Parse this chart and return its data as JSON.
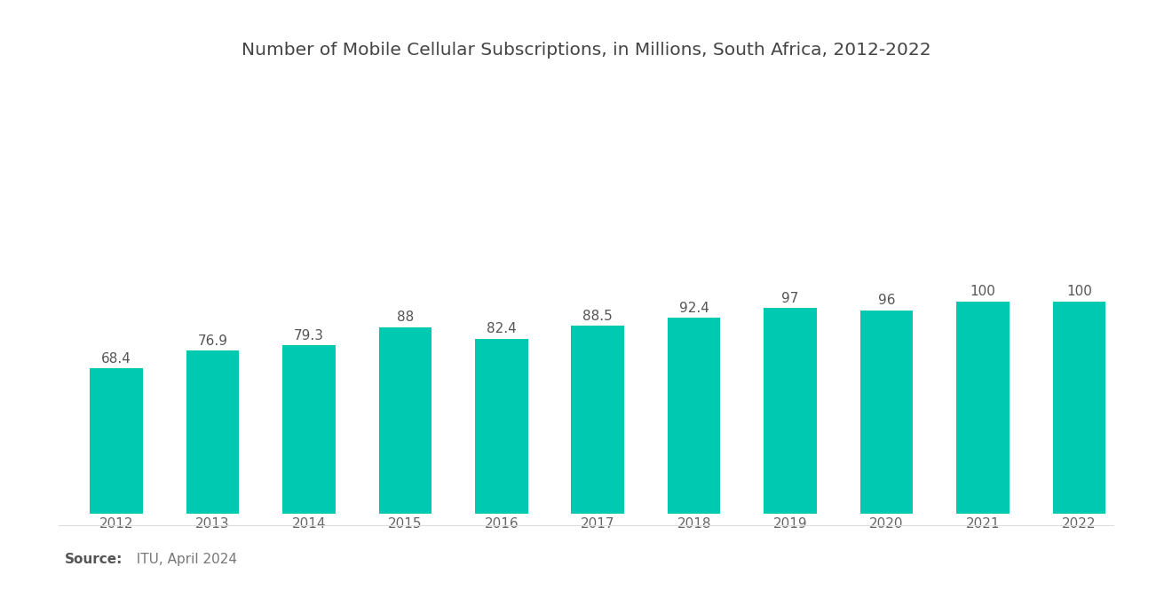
{
  "title": "Number of Mobile Cellular Subscriptions, in Millions, South Africa, 2012-2022",
  "years": [
    "2012",
    "2013",
    "2014",
    "2015",
    "2016",
    "2017",
    "2018",
    "2019",
    "2020",
    "2021",
    "2022"
  ],
  "values": [
    68.4,
    76.9,
    79.3,
    88,
    82.4,
    88.5,
    92.4,
    97,
    96,
    100,
    100
  ],
  "bar_color": "#00C9B1",
  "background_color": "#ffffff",
  "title_fontsize": 14.5,
  "label_fontsize": 11,
  "tick_fontsize": 11,
  "source_bold": "Source:",
  "source_text": "  ITU, April 2024",
  "source_fontsize": 11,
  "ylim": [
    0,
    145
  ],
  "bar_width": 0.55
}
